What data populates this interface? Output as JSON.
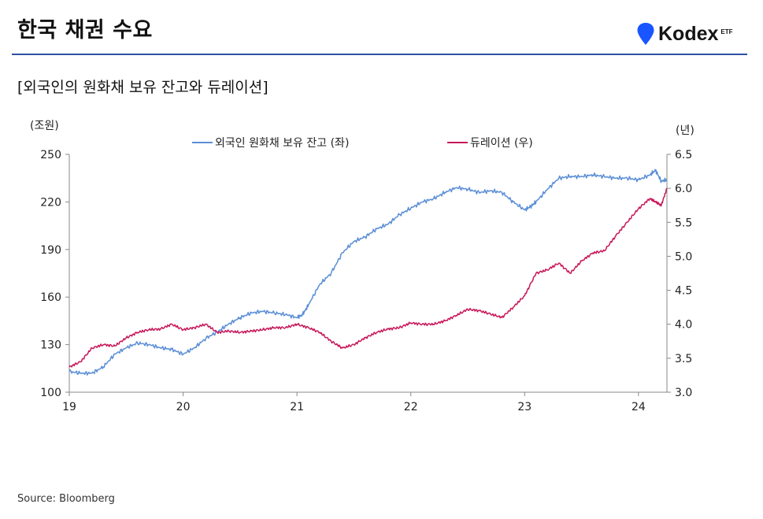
{
  "header": {
    "title": "한국 채권 수요",
    "brand_name": "Kodex",
    "brand_suffix": "ETF",
    "brand_color": "#1a56ff"
  },
  "chart_title": "[외국인의 원화채 보유 잔고와 듀레이션]",
  "source": "Source: Bloomberg",
  "chart_data": {
    "type": "line",
    "left_axis": {
      "unit_label": "(조원)",
      "ylim": [
        100,
        250
      ],
      "ticks": [
        "100",
        "130",
        "160",
        "190",
        "220",
        "250"
      ]
    },
    "right_axis": {
      "unit_label": "(년)",
      "ylim": [
        3.0,
        6.5
      ],
      "ticks": [
        "3.0",
        "3.5",
        "4.0",
        "4.5",
        "5.0",
        "5.5",
        "6.0",
        "6.5"
      ]
    },
    "x_axis": {
      "xlim": [
        2019.0,
        2024.25
      ],
      "ticks": [
        "19",
        "20",
        "21",
        "22",
        "23",
        "24"
      ]
    },
    "legend_placement": "top-center",
    "grid": false,
    "series": [
      {
        "name": "외국인 원화채 보유 잔고 (좌)",
        "axis": "left",
        "color": "#5b8fd6",
        "x": [
          2019.0,
          2019.1,
          2019.2,
          2019.3,
          2019.4,
          2019.5,
          2019.6,
          2019.7,
          2019.8,
          2019.9,
          2020.0,
          2020.1,
          2020.2,
          2020.3,
          2020.4,
          2020.5,
          2020.6,
          2020.7,
          2020.8,
          2020.9,
          2021.0,
          2021.05,
          2021.1,
          2021.2,
          2021.3,
          2021.4,
          2021.5,
          2021.6,
          2021.7,
          2021.8,
          2021.9,
          2022.0,
          2022.1,
          2022.2,
          2022.3,
          2022.4,
          2022.5,
          2022.6,
          2022.7,
          2022.8,
          2022.9,
          2023.0,
          2023.05,
          2023.1,
          2023.2,
          2023.3,
          2023.4,
          2023.5,
          2023.6,
          2023.7,
          2023.8,
          2023.9,
          2024.0,
          2024.1,
          2024.15,
          2024.2,
          2024.25
        ],
        "values": [
          113,
          112,
          112,
          116,
          124,
          128,
          131,
          130,
          128,
          127,
          124,
          128,
          134,
          138,
          143,
          147,
          150,
          151,
          150,
          149,
          147,
          149,
          155,
          168,
          175,
          188,
          195,
          198,
          203,
          206,
          212,
          216,
          220,
          222,
          226,
          229,
          228,
          226,
          227,
          226,
          220,
          215,
          217,
          220,
          228,
          235,
          236,
          236,
          237,
          236,
          235,
          235,
          234,
          237,
          240,
          233,
          234
        ]
      },
      {
        "name": "듀레이션 (우)",
        "axis": "right",
        "color": "#c8175a",
        "x": [
          2019.0,
          2019.1,
          2019.2,
          2019.3,
          2019.4,
          2019.5,
          2019.6,
          2019.7,
          2019.8,
          2019.9,
          2020.0,
          2020.1,
          2020.2,
          2020.3,
          2020.4,
          2020.5,
          2020.6,
          2020.7,
          2020.8,
          2020.9,
          2021.0,
          2021.1,
          2021.2,
          2021.3,
          2021.4,
          2021.5,
          2021.6,
          2021.7,
          2021.8,
          2021.9,
          2022.0,
          2022.1,
          2022.2,
          2022.3,
          2022.4,
          2022.5,
          2022.6,
          2022.7,
          2022.8,
          2022.9,
          2023.0,
          2023.1,
          2023.2,
          2023.3,
          2023.4,
          2023.5,
          2023.6,
          2023.7,
          2023.8,
          2023.9,
          2024.0,
          2024.1,
          2024.15,
          2024.2,
          2024.25
        ],
        "values": [
          3.37,
          3.45,
          3.65,
          3.7,
          3.68,
          3.8,
          3.88,
          3.92,
          3.93,
          4.0,
          3.92,
          3.95,
          4.0,
          3.88,
          3.9,
          3.88,
          3.9,
          3.92,
          3.95,
          3.95,
          4.0,
          3.95,
          3.88,
          3.75,
          3.65,
          3.7,
          3.8,
          3.88,
          3.93,
          3.95,
          4.02,
          4.0,
          4.0,
          4.05,
          4.13,
          4.22,
          4.2,
          4.15,
          4.1,
          4.25,
          4.42,
          4.75,
          4.8,
          4.9,
          4.75,
          4.93,
          5.05,
          5.08,
          5.3,
          5.5,
          5.7,
          5.85,
          5.8,
          5.75,
          6.0
        ]
      }
    ]
  }
}
